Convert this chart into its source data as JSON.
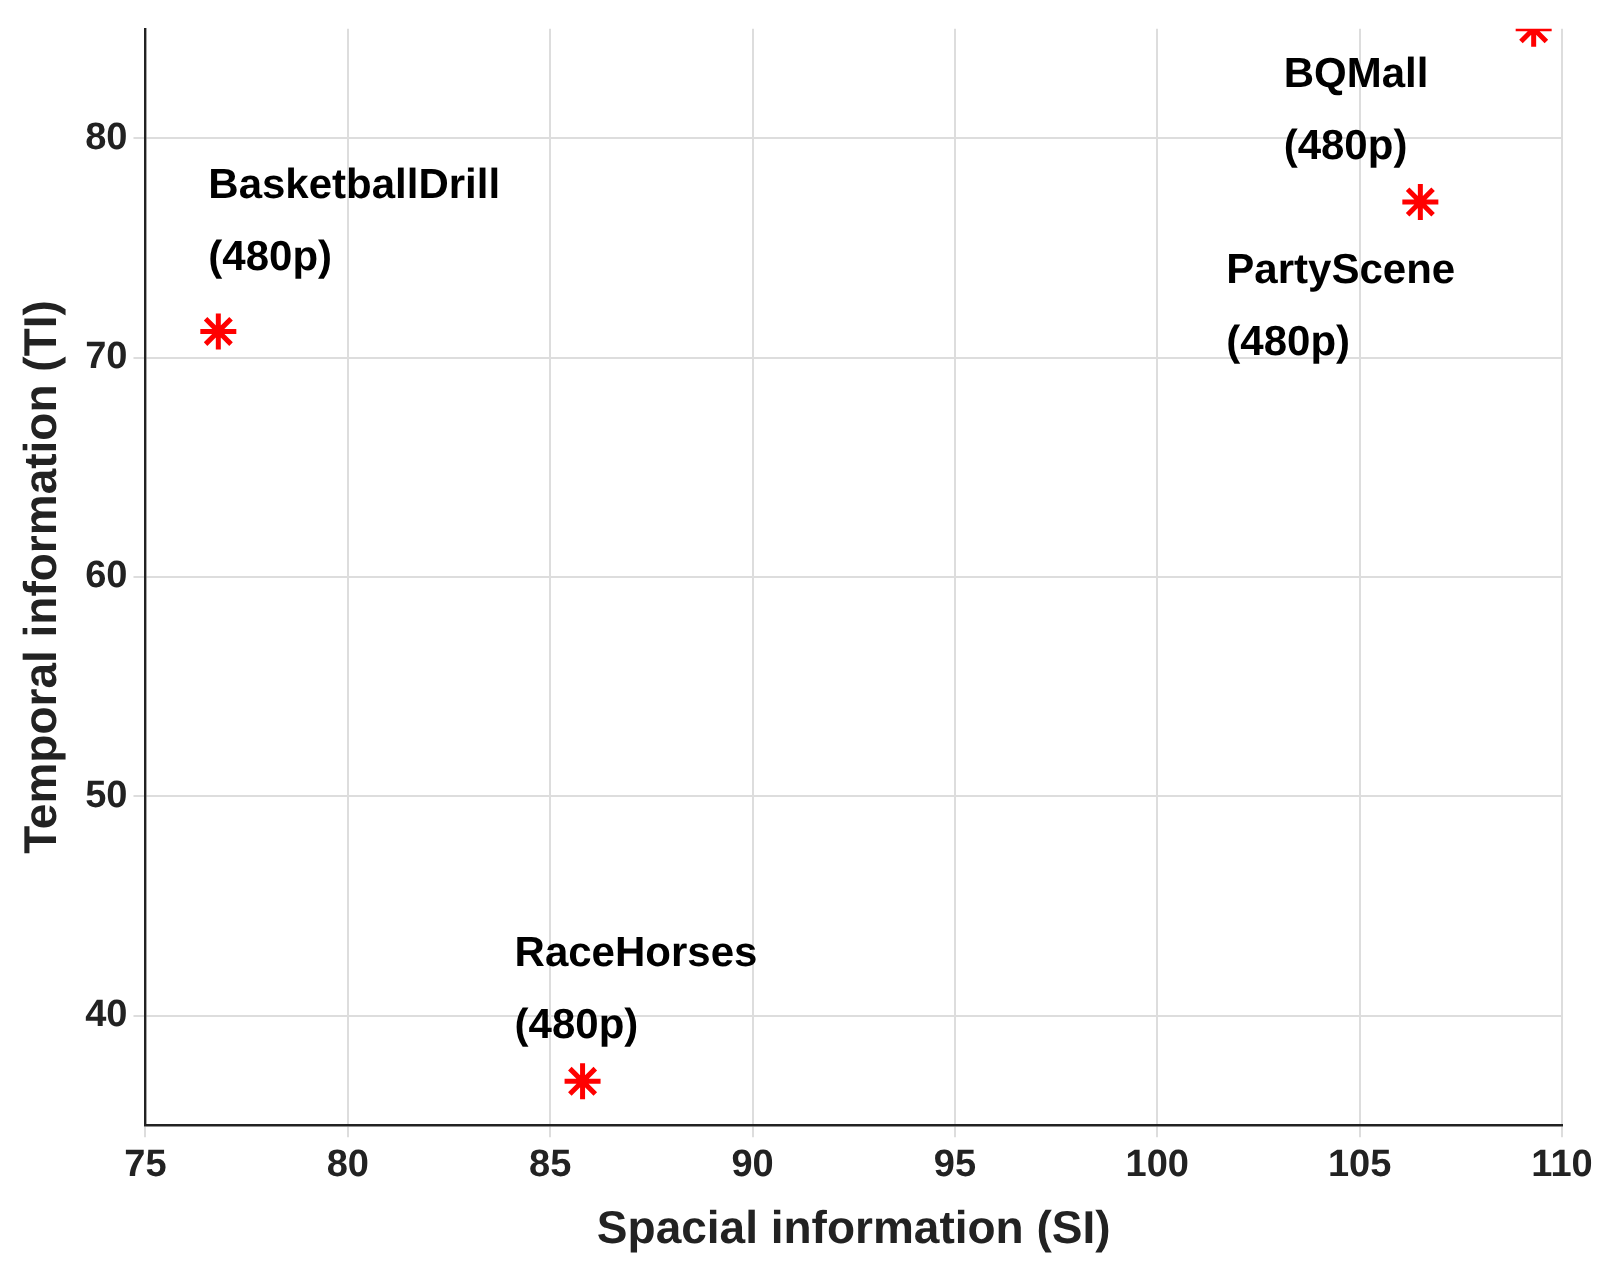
{
  "chart_data": {
    "type": "scatter",
    "xlabel": "Spacial information (SI)",
    "ylabel": "Temporal information (TI)",
    "series": [
      {
        "color": "#ff0000",
        "x": [
          76.8,
          85.8,
          106.5,
          109.3
        ],
        "values": [
          71.2,
          37.0,
          77.1,
          85.0
        ]
      }
    ],
    "xlim": [
      75,
      110
    ],
    "xticks": [
      75,
      80,
      85,
      90,
      95,
      100,
      105,
      110
    ],
    "ylim": [
      35,
      85
    ],
    "yticks": [
      40,
      50,
      60,
      70,
      80
    ],
    "grid": true,
    "legend": false,
    "marker": "cross",
    "annotations": [
      {
        "text": "BasketballDrill\n(480p)",
        "x": 76.8,
        "y": 71.2
      },
      {
        "text": "RaceHorses\n(480p)",
        "x": 85.8,
        "y": 37.0
      },
      {
        "text": "PartyScene\n(480p)",
        "x": 106.5,
        "y": 77.1
      },
      {
        "text": "BQMall\n(480p)",
        "x": 109.3,
        "y": 85.0
      }
    ]
  }
}
